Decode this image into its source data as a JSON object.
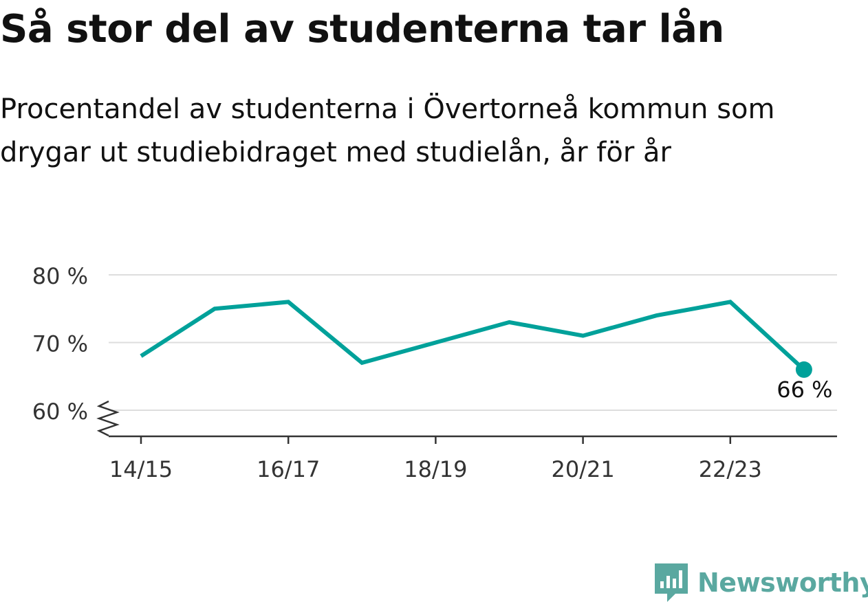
{
  "title": "Så stor del av studenterna tar lån",
  "subtitle": "Procentandel av studenterna i Övertorneå kommun som drygar ut studiebidraget med studielån, år för år",
  "brand": {
    "name": "Newsworthy",
    "icon": "newsworthy-logo-icon"
  },
  "colors": {
    "line": "#00a19a",
    "grid": "#dddddd",
    "axis": "#333333",
    "brand": "#5aa8a0"
  },
  "chart_data": {
    "type": "line",
    "x": [
      "14/15",
      "15/16",
      "16/17",
      "17/18",
      "18/19",
      "19/20",
      "20/21",
      "21/22",
      "22/23",
      "23/24"
    ],
    "series": [
      {
        "values": [
          68,
          75,
          76,
          67,
          70,
          73,
          71,
          74,
          76,
          66
        ]
      }
    ],
    "x_tick_labels": [
      "14/15",
      "16/17",
      "18/19",
      "20/21",
      "22/23"
    ],
    "y_ticks": [
      60,
      70,
      80
    ],
    "y_tick_labels": [
      "60 %",
      "70 %",
      "80 %"
    ],
    "ylim": [
      60,
      80
    ],
    "y_axis_break": true,
    "grid": true,
    "end_label": "66 %"
  }
}
